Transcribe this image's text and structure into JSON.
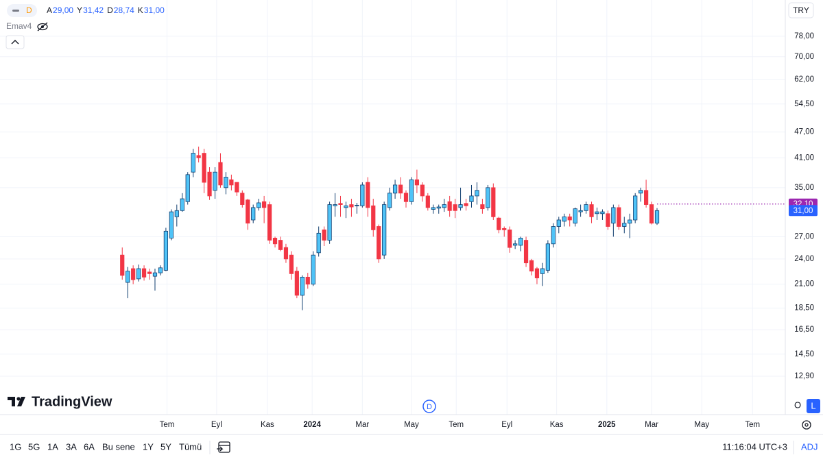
{
  "header": {
    "interval": "D",
    "ohlc": [
      {
        "key": "A",
        "value": "29,00"
      },
      {
        "key": "Y",
        "value": "31,42"
      },
      {
        "key": "D",
        "value": "28,74"
      },
      {
        "key": "K",
        "value": "31,00"
      }
    ],
    "indicator": "Emav4"
  },
  "chart_data": {
    "type": "candlestick",
    "open": [
      24.5,
      21.2,
      22.8,
      21.6,
      22.8,
      22.4,
      21.9,
      22.3,
      22.6,
      26.8,
      30,
      31,
      32.5,
      38,
      41.5,
      42,
      38,
      34.5,
      40,
      35,
      36.5,
      36,
      34,
      32.8,
      29.5,
      31.5,
      32.5,
      32,
      26.8,
      26.5,
      25.5,
      24.5,
      22.5,
      19.8,
      21.8,
      21,
      24.8,
      28,
      26.5,
      31.8,
      32.2,
      31.5,
      32,
      31.8,
      31.8,
      36,
      31.8,
      28.5,
      24.5,
      31.5,
      34,
      35.5,
      34,
      32.5,
      36.5,
      35.5,
      33.5,
      31.2,
      31.4,
      31.5,
      32.5,
      32,
      31.5,
      32.2,
      32.5,
      33.5,
      32,
      31.5,
      35,
      29.8,
      28.2,
      28,
      25.8,
      25.8,
      26.5,
      23.8,
      22.8,
      22.2,
      22.6,
      26,
      28.5,
      29.3,
      30,
      29,
      30.8,
      31,
      32,
      30.5,
      30.5,
      30.5,
      29,
      31.5,
      28.5,
      29,
      29.5,
      34,
      34.5,
      32,
      29
    ],
    "high": [
      25.5,
      23,
      23.2,
      23.3,
      23.2,
      22.8,
      22.8,
      23.2,
      28.3,
      31.2,
      32,
      34,
      38,
      43,
      43.5,
      43,
      39,
      39,
      42,
      38,
      37.5,
      36,
      34.5,
      33,
      32,
      33,
      33.5,
      32.5,
      27,
      27,
      26,
      25,
      23,
      22,
      22.3,
      25,
      28.5,
      28.5,
      32.5,
      34,
      33.5,
      32.5,
      33,
      32.3,
      36,
      37,
      33,
      28.8,
      32.5,
      35,
      36.5,
      37,
      34.5,
      37,
      38.5,
      36,
      34,
      32,
      32,
      33,
      33.5,
      33,
      35,
      33,
      35.5,
      36,
      33,
      35.5,
      35.8,
      30,
      28.5,
      28.5,
      26.5,
      27,
      27,
      24,
      23,
      23.5,
      26.5,
      29,
      30,
      30.5,
      30.5,
      31.5,
      32,
      32.5,
      32.5,
      31.5,
      31.2,
      31,
      32,
      32,
      30,
      30.5,
      34,
      35,
      36.5,
      32.5,
      31.42
    ],
    "low": [
      21.5,
      19.5,
      21,
      21.3,
      21.4,
      21.5,
      20.3,
      22,
      22.5,
      26.5,
      28.5,
      30.8,
      32,
      37,
      40,
      34,
      32.8,
      33,
      35,
      33.8,
      34.5,
      33.5,
      31.5,
      28,
      29,
      31,
      29,
      26,
      25.5,
      25,
      23.5,
      21.5,
      19.5,
      18.3,
      20.5,
      20.8,
      24.3,
      25.7,
      26,
      30,
      30,
      29.8,
      30,
      30.5,
      31.5,
      30,
      27,
      23.5,
      24,
      31,
      33,
      33,
      31.5,
      32,
      34,
      32.5,
      31,
      30.5,
      30.5,
      30.8,
      30,
      29.8,
      31,
      31,
      31.5,
      32,
      30.5,
      31,
      29.5,
      27.5,
      27,
      24.8,
      25.3,
      25,
      23,
      22,
      21,
      20.8,
      22.3,
      25.5,
      27.5,
      28.5,
      28.5,
      28.5,
      30,
      30.5,
      29,
      29.5,
      29.5,
      28,
      27,
      28,
      27.5,
      26.8,
      29,
      32.5,
      31.5,
      28.8,
      28.74
    ],
    "close": [
      22,
      22.5,
      21.5,
      22.8,
      21.8,
      22.2,
      22.3,
      22.9,
      27.8,
      30.8,
      31,
      33,
      37.5,
      42,
      41,
      36,
      33.5,
      38,
      35.5,
      37,
      35.5,
      34.2,
      32,
      29,
      31.5,
      32.3,
      31.5,
      26.5,
      26,
      25.2,
      24,
      22.2,
      19.8,
      21.8,
      21,
      24.5,
      27.5,
      26.5,
      32,
      32,
      32,
      31.8,
      31.6,
      31.9,
      35.5,
      31.5,
      28,
      24,
      32,
      34,
      35.5,
      34,
      32.5,
      36.5,
      35.5,
      33.5,
      31.5,
      31.5,
      31.6,
      32,
      31,
      31,
      32,
      31.8,
      33.5,
      34.5,
      31.3,
      35,
      30,
      28,
      28,
      25.5,
      26,
      26.8,
      23.5,
      22.5,
      21.7,
      22.8,
      26,
      28.5,
      29.5,
      30,
      29.5,
      31.3,
      31,
      32,
      30,
      30.8,
      30.8,
      28.5,
      31.5,
      28.5,
      29,
      29.5,
      33.5,
      34.5,
      32,
      29,
      31
    ],
    "up_color": "#4fc3f7",
    "up_border": "#0d3c6e",
    "down_color": "#f23645",
    "log_scale": true,
    "ylim": [
      10.53,
      94.5
    ],
    "yticks": [
      {
        "value": 78,
        "label": "78,00"
      },
      {
        "value": 70,
        "label": "70,00"
      },
      {
        "value": 62,
        "label": "62,00"
      },
      {
        "value": 54.5,
        "label": "54,50"
      },
      {
        "value": 47,
        "label": "47,00"
      },
      {
        "value": 41,
        "label": "41,00"
      },
      {
        "value": 35,
        "label": "35,00"
      },
      {
        "value": 27,
        "label": "27,00"
      },
      {
        "value": 24,
        "label": "24,00"
      },
      {
        "value": 21,
        "label": "21,00"
      },
      {
        "value": 18.5,
        "label": "18,50"
      },
      {
        "value": 16.5,
        "label": "16,50"
      },
      {
        "value": 14.5,
        "label": "14,50"
      },
      {
        "value": 12.9,
        "label": "12,90"
      }
    ],
    "xlim": [
      -22.4,
      121.5
    ],
    "xticks": [
      {
        "value": 8.2,
        "label": "Tem"
      },
      {
        "value": 17.3,
        "label": "Eyl"
      },
      {
        "value": 26.6,
        "label": "Kas"
      },
      {
        "value": 34.8,
        "label": "2024"
      },
      {
        "value": 44,
        "label": "Mar"
      },
      {
        "value": 53,
        "label": "May"
      },
      {
        "value": 61.2,
        "label": "Tem"
      },
      {
        "value": 70.5,
        "label": "Eyl"
      },
      {
        "value": 79.6,
        "label": "Kas"
      },
      {
        "value": 88.8,
        "label": "2025"
      },
      {
        "value": 97,
        "label": "Mar"
      },
      {
        "value": 106.2,
        "label": "May"
      },
      {
        "value": 115.5,
        "label": "Tem"
      }
    ],
    "grid": true,
    "price_labels": [
      {
        "value": 32.1,
        "label": "32,10",
        "color": "#9c27b0",
        "dotted": true
      },
      {
        "value": 31,
        "label": "31,00",
        "color": "#2962ff",
        "dotted": false
      }
    ]
  },
  "logo": "TradingView",
  "currency": "TRY",
  "event_marker": "D",
  "scale_buttons": [
    "O",
    "L"
  ],
  "ranges": [
    "1G",
    "5G",
    "1A",
    "3A",
    "6A",
    "Bu sene",
    "1Y",
    "5Y",
    "Tümü"
  ],
  "clock": "11:16:04 UTC+3",
  "adj": "ADJ"
}
